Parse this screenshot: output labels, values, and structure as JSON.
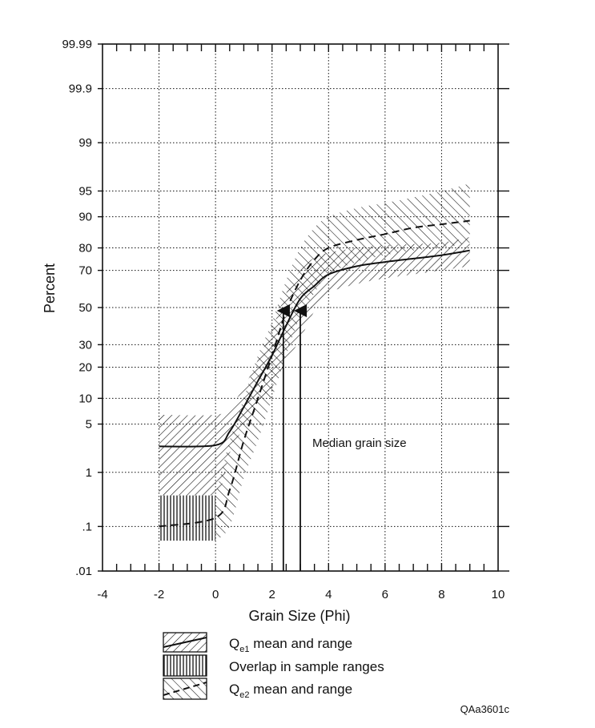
{
  "chart_data": {
    "type": "line",
    "xlabel": "Grain Size (Phi)",
    "ylabel": "Percent",
    "xlim": [
      -4,
      10
    ],
    "x_ticks": [
      -4,
      -2,
      0,
      2,
      4,
      6,
      8,
      10
    ],
    "x_tick_labels": [
      "-4",
      "-2",
      "0",
      "2",
      "4",
      "6",
      "8",
      "10"
    ],
    "y_scale": "probability",
    "y_ticks": [
      0.01,
      0.1,
      1,
      5,
      10,
      20,
      30,
      50,
      70,
      80,
      90,
      95,
      99,
      99.9,
      99.99
    ],
    "y_tick_labels": [
      ".01",
      ".1",
      "1",
      "5",
      "10",
      "20",
      "30",
      "50",
      "70",
      "80",
      "90",
      "95",
      "99",
      "99.9",
      "99.99"
    ],
    "grid": true,
    "series": [
      {
        "name": "Qe1 mean and range",
        "style": "solid",
        "mean": [
          [
            -2,
            2.5
          ],
          [
            0,
            2.6
          ],
          [
            0.5,
            4
          ],
          [
            1,
            8
          ],
          [
            1.5,
            15
          ],
          [
            2,
            25
          ],
          [
            2.5,
            40
          ],
          [
            3,
            55
          ],
          [
            3.5,
            62
          ],
          [
            4,
            68
          ],
          [
            5,
            72
          ],
          [
            6,
            74
          ],
          [
            7,
            75.5
          ],
          [
            8,
            77
          ],
          [
            9,
            79
          ]
        ],
        "range_low": [
          [
            -2,
            0.25
          ],
          [
            0,
            0.45
          ],
          [
            0.5,
            2
          ],
          [
            1,
            4.5
          ],
          [
            1.5,
            8
          ],
          [
            2,
            13
          ],
          [
            2.5,
            22
          ],
          [
            3,
            33
          ],
          [
            3.5,
            48
          ],
          [
            4,
            58
          ],
          [
            5,
            63
          ],
          [
            6,
            66
          ],
          [
            7,
            68
          ],
          [
            8,
            70
          ],
          [
            9,
            72
          ]
        ],
        "range_high": [
          [
            -2,
            6.5
          ],
          [
            0,
            6.5
          ],
          [
            0.5,
            8
          ],
          [
            1,
            13
          ],
          [
            1.5,
            23
          ],
          [
            2,
            38
          ],
          [
            2.5,
            58
          ],
          [
            3,
            70
          ],
          [
            3.5,
            76
          ],
          [
            4,
            78
          ],
          [
            5,
            80
          ],
          [
            6,
            81
          ],
          [
            7,
            81.5
          ],
          [
            8,
            82
          ],
          [
            9,
            84
          ]
        ]
      },
      {
        "name": "Qe2 mean and range",
        "style": "dashed",
        "mean": [
          [
            -2,
            0.1
          ],
          [
            0,
            0.15
          ],
          [
            0.5,
            0.5
          ],
          [
            1,
            3
          ],
          [
            1.5,
            10
          ],
          [
            2,
            25
          ],
          [
            2.5,
            48
          ],
          [
            3,
            65
          ],
          [
            3.5,
            75
          ],
          [
            4,
            80
          ],
          [
            5,
            83
          ],
          [
            6,
            85
          ],
          [
            7,
            87
          ],
          [
            8,
            88
          ],
          [
            9,
            89
          ]
        ],
        "range_low": [
          [
            0,
            0.05
          ],
          [
            0.5,
            0.1
          ],
          [
            1,
            0.8
          ],
          [
            1.5,
            3
          ],
          [
            2,
            10
          ],
          [
            2.5,
            25
          ],
          [
            3,
            45
          ],
          [
            3.5,
            58
          ],
          [
            4,
            68
          ],
          [
            5,
            74
          ],
          [
            6,
            77
          ],
          [
            7,
            79
          ],
          [
            8,
            80
          ],
          [
            9,
            82
          ]
        ],
        "range_high": [
          [
            0,
            0.4
          ],
          [
            0.5,
            3
          ],
          [
            1,
            10
          ],
          [
            1.5,
            25
          ],
          [
            2,
            42
          ],
          [
            2.5,
            65
          ],
          [
            3,
            80
          ],
          [
            3.5,
            87
          ],
          [
            4,
            90
          ],
          [
            5,
            92
          ],
          [
            6,
            93
          ],
          [
            7,
            94
          ],
          [
            8,
            95
          ],
          [
            9,
            96
          ]
        ]
      }
    ],
    "overlap_range": {
      "name": "Overlap in sample ranges",
      "x": [
        -2,
        0
      ],
      "y": [
        0.05,
        0.4
      ]
    },
    "median_markers": [
      2.4,
      3.0
    ],
    "annotation": "Median grain size",
    "legend": [
      {
        "text": "Q",
        "sub": "e1",
        "rest": " mean and range"
      },
      {
        "text": "Overlap in sample ranges",
        "sub": "",
        "rest": ""
      },
      {
        "text": "Q",
        "sub": "e2",
        "rest": " mean and range"
      }
    ],
    "figure_code": "QAa3601c"
  },
  "colors": {
    "ink": "#111111",
    "grid": "#111111",
    "background": "#ffffff"
  }
}
